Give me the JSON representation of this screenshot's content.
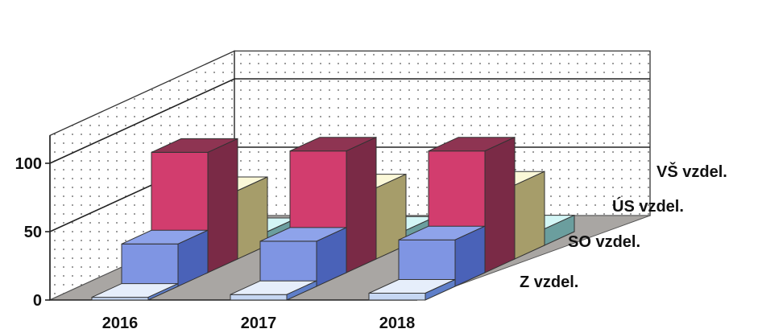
{
  "chart_data": {
    "type": "bar",
    "style": "3d-depth",
    "categories": [
      "2016",
      "2017",
      "2018"
    ],
    "series": [
      {
        "name": "Z vzdel.",
        "values": [
          2,
          4,
          5
        ],
        "colors": {
          "front": "#c6d7f3",
          "top": "#e6eefb",
          "side": "#5f7fc9"
        }
      },
      {
        "name": "SO vzdel.",
        "values": [
          31,
          33,
          34
        ],
        "colors": {
          "front": "#7f95e3",
          "top": "#8ea3ea",
          "side": "#4a62b8"
        }
      },
      {
        "name": "ÚS vzdel.",
        "values": [
          88,
          89,
          89
        ],
        "colors": {
          "front": "#d23d6e",
          "top": "#8e3452",
          "side": "#7a2a46"
        }
      },
      {
        "name": "VŠ vzdel.",
        "values": [
          50,
          52,
          54
        ],
        "colors": {
          "front": "#f4f1c4",
          "top": "#fbf8d8",
          "side": "#a69d6a"
        }
      },
      {
        "name": "",
        "values": [
          10,
          11,
          12
        ],
        "colors": {
          "front": "#b7ecec",
          "top": "#d3f6f6",
          "side": "#6b9e9e"
        }
      }
    ],
    "ylim": [
      0,
      100
    ],
    "yticks": [
      "0",
      "50",
      "100"
    ],
    "title": "",
    "xlabel": "",
    "ylabel": "",
    "grid": true,
    "legend": "series labels along depth axis (right)"
  }
}
